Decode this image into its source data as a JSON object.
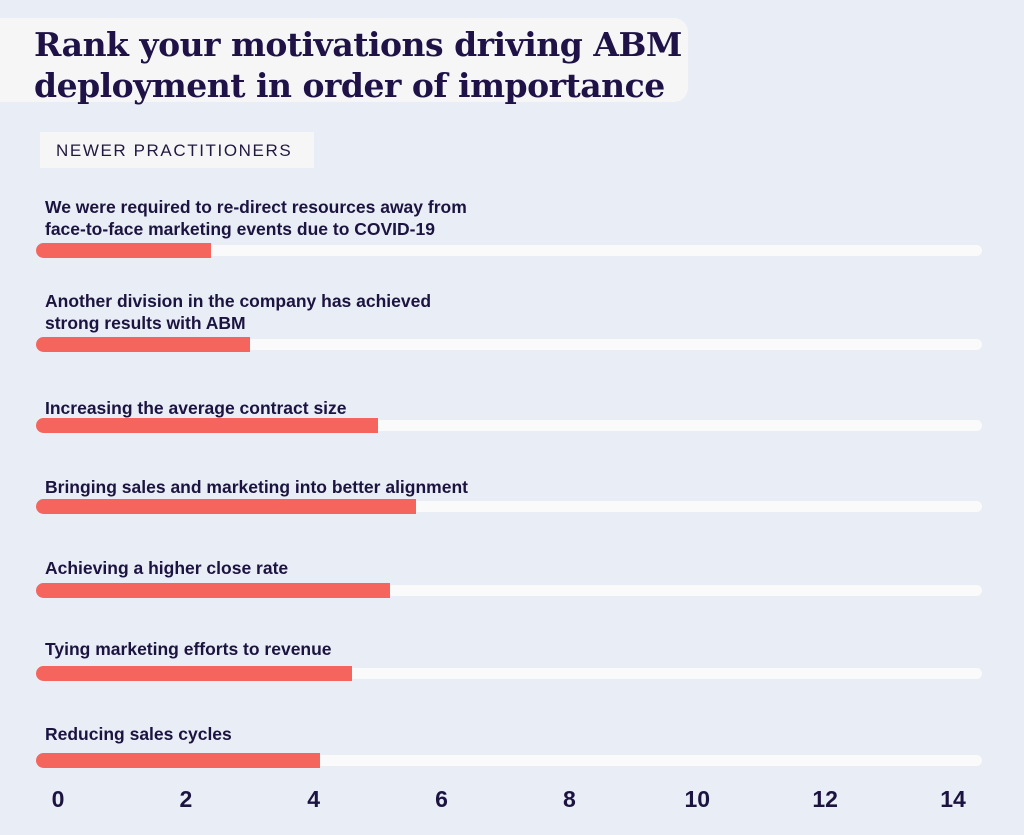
{
  "title": "Rank your motivations driving ABM deployment in order of importance",
  "subtitle": "NEWER PRACTITIONERS",
  "colors": {
    "bar": "#f5655e",
    "track": "#fafafa",
    "text": "#1c1440",
    "background": "#e9edf5"
  },
  "chart_data": {
    "type": "bar",
    "orientation": "horizontal",
    "title": "Rank your motivations driving ABM deployment in order of importance",
    "subtitle": "NEWER PRACTITIONERS",
    "categories": [
      "We were required to re-direct resources away from face-to-face marketing events due to COVID-19",
      "Another division in the company has achieved strong results with ABM",
      "Increasing the average contract size",
      "Bringing sales and marketing into better alignment",
      "Achieving a higher close rate",
      "Tying marketing efforts to revenue",
      "Reducing sales cycles"
    ],
    "label_lines": [
      [
        "We were required to re-direct resources away from",
        "face-to-face marketing events due to COVID-19"
      ],
      [
        "Another division in the company has achieved",
        "strong results with ABM"
      ],
      [
        "Increasing the average contract size"
      ],
      [
        "Bringing sales and marketing into better alignment"
      ],
      [
        "Achieving a higher close rate"
      ],
      [
        "Tying marketing efforts to revenue"
      ],
      [
        "Reducing sales cycles"
      ]
    ],
    "values": [
      2.4,
      3.0,
      5.0,
      5.6,
      5.2,
      4.6,
      4.1
    ],
    "xlim": [
      0,
      14
    ],
    "xticks": [
      "0",
      "2",
      "4",
      "6",
      "8",
      "10",
      "12",
      "14"
    ],
    "grid": false,
    "legend": "none"
  }
}
